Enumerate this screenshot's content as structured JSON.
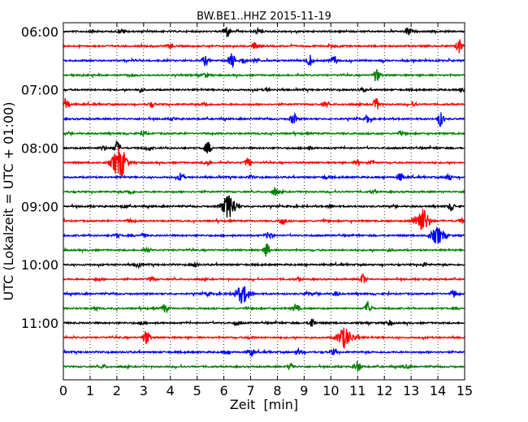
{
  "chart_data": {
    "type": "line",
    "title": "BW.BE1..HHZ 2015-11-19",
    "xlabel": "Zeit  [min]",
    "ylabel": "UTC (Lokalzeit = UTC + 01:00)",
    "xlim": [
      0,
      15
    ],
    "x_ticks": [
      "0",
      "1",
      "2",
      "3",
      "4",
      "5",
      "6",
      "7",
      "8",
      "9",
      "10",
      "11",
      "12",
      "13",
      "14",
      "15"
    ],
    "y_tick_labels": [
      "06:00",
      "07:00",
      "08:00",
      "09:00",
      "10:00",
      "11:00"
    ],
    "grid": "vertical-dotted",
    "trace_interval_min": 15,
    "trace_colors": [
      "#000000",
      "#ff0000",
      "#0000ff",
      "#008000"
    ],
    "traces": [
      {
        "start": "06:00",
        "events": [
          [
            6.1,
            0.8
          ],
          [
            12.9,
            0.6
          ],
          [
            7.3,
            0.3
          ],
          [
            1.1,
            0.2
          ],
          [
            2.2,
            0.25
          ]
        ]
      },
      {
        "start": "06:15",
        "events": [
          [
            7.2,
            0.6
          ],
          [
            14.8,
            1.0
          ],
          [
            4.0,
            0.3
          ],
          [
            10.0,
            0.2
          ]
        ]
      },
      {
        "start": "06:30",
        "events": [
          [
            5.3,
            0.7
          ],
          [
            6.3,
            1.0
          ],
          [
            7.2,
            0.4
          ],
          [
            9.2,
            0.8
          ],
          [
            10.1,
            0.6
          ],
          [
            6.7,
            0.4
          ]
        ]
      },
      {
        "start": "06:45",
        "events": [
          [
            5.3,
            0.3
          ],
          [
            11.7,
            0.9
          ],
          [
            2.5,
            0.15
          ]
        ]
      },
      {
        "start": "07:00",
        "events": [
          [
            2.9,
            0.3
          ],
          [
            7.6,
            0.2
          ],
          [
            11.2,
            0.2
          ],
          [
            14.9,
            0.3
          ]
        ]
      },
      {
        "start": "07:15",
        "events": [
          [
            0.1,
            0.9
          ],
          [
            11.7,
            0.8
          ],
          [
            3.3,
            0.3
          ],
          [
            5.3,
            0.25
          ],
          [
            9.8,
            0.3
          ],
          [
            13.1,
            0.3
          ]
        ]
      },
      {
        "start": "07:30",
        "events": [
          [
            8.6,
            0.8
          ],
          [
            11.4,
            0.6
          ],
          [
            14.1,
            1.0
          ],
          [
            4.1,
            0.2
          ]
        ]
      },
      {
        "start": "07:45",
        "events": [
          [
            3.0,
            0.3
          ],
          [
            12.6,
            0.2
          ]
        ]
      },
      {
        "start": "08:00",
        "events": [
          [
            2.0,
            0.9
          ],
          [
            5.4,
            0.8
          ],
          [
            3.2,
            0.3
          ],
          [
            1.5,
            0.3
          ],
          [
            9.2,
            0.2
          ]
        ]
      },
      {
        "start": "08:15",
        "events": [
          [
            2.1,
            2.2
          ],
          [
            6.9,
            0.6
          ],
          [
            5.4,
            0.4
          ],
          [
            11.0,
            0.3
          ],
          [
            11.5,
            0.3
          ]
        ]
      },
      {
        "start": "08:30",
        "events": [
          [
            4.4,
            0.6
          ],
          [
            12.6,
            0.6
          ],
          [
            14.4,
            0.5
          ],
          [
            7.0,
            0.2
          ],
          [
            9.8,
            0.2
          ]
        ]
      },
      {
        "start": "08:45",
        "events": [
          [
            2.5,
            0.3
          ],
          [
            7.9,
            0.5
          ],
          [
            11.6,
            0.2
          ]
        ]
      },
      {
        "start": "09:00",
        "events": [
          [
            6.2,
            1.6
          ],
          [
            14.5,
            0.6
          ],
          [
            2.3,
            0.2
          ],
          [
            10.0,
            0.2
          ]
        ]
      },
      {
        "start": "09:15",
        "events": [
          [
            13.4,
            1.8
          ],
          [
            8.2,
            0.5
          ],
          [
            2.5,
            0.2
          ],
          [
            14.9,
            0.3
          ]
        ]
      },
      {
        "start": "09:30",
        "events": [
          [
            14.0,
            1.1
          ],
          [
            2.0,
            0.3
          ],
          [
            7.7,
            0.5
          ],
          [
            3.0,
            0.2
          ]
        ]
      },
      {
        "start": "09:45",
        "events": [
          [
            7.6,
            0.9
          ],
          [
            3.1,
            0.3
          ],
          [
            12.2,
            0.15
          ]
        ]
      },
      {
        "start": "10:00",
        "events": [
          [
            2.8,
            0.3
          ],
          [
            4.9,
            0.3
          ],
          [
            13.5,
            0.3
          ]
        ]
      },
      {
        "start": "10:15",
        "events": [
          [
            3.3,
            0.3
          ],
          [
            11.2,
            0.7
          ],
          [
            1.3,
            0.2
          ],
          [
            8.8,
            0.2
          ]
        ]
      },
      {
        "start": "10:30",
        "events": [
          [
            6.7,
            1.2
          ],
          [
            14.6,
            0.5
          ],
          [
            5.4,
            0.3
          ],
          [
            9.1,
            0.2
          ],
          [
            10.2,
            0.3
          ]
        ]
      },
      {
        "start": "10:45",
        "events": [
          [
            3.8,
            0.6
          ],
          [
            8.7,
            0.6
          ],
          [
            11.4,
            1.0
          ],
          [
            1.2,
            0.2
          ]
        ]
      },
      {
        "start": "11:00",
        "events": [
          [
            9.3,
            0.7
          ],
          [
            12.2,
            0.3
          ],
          [
            6.5,
            0.3
          ],
          [
            2.9,
            0.2
          ]
        ]
      },
      {
        "start": "11:15",
        "events": [
          [
            3.1,
            1.0
          ],
          [
            10.5,
            1.4
          ],
          [
            11.0,
            0.4
          ],
          [
            7.0,
            0.2
          ]
        ]
      },
      {
        "start": "11:30",
        "events": [
          [
            7.0,
            0.5
          ],
          [
            8.8,
            0.4
          ],
          [
            10.1,
            0.4
          ],
          [
            6.1,
            0.3
          ]
        ]
      },
      {
        "start": "11:45",
        "events": [
          [
            11.0,
            0.7
          ],
          [
            8.5,
            0.5
          ],
          [
            1.5,
            0.2
          ],
          [
            12.8,
            0.2
          ]
        ]
      }
    ]
  }
}
